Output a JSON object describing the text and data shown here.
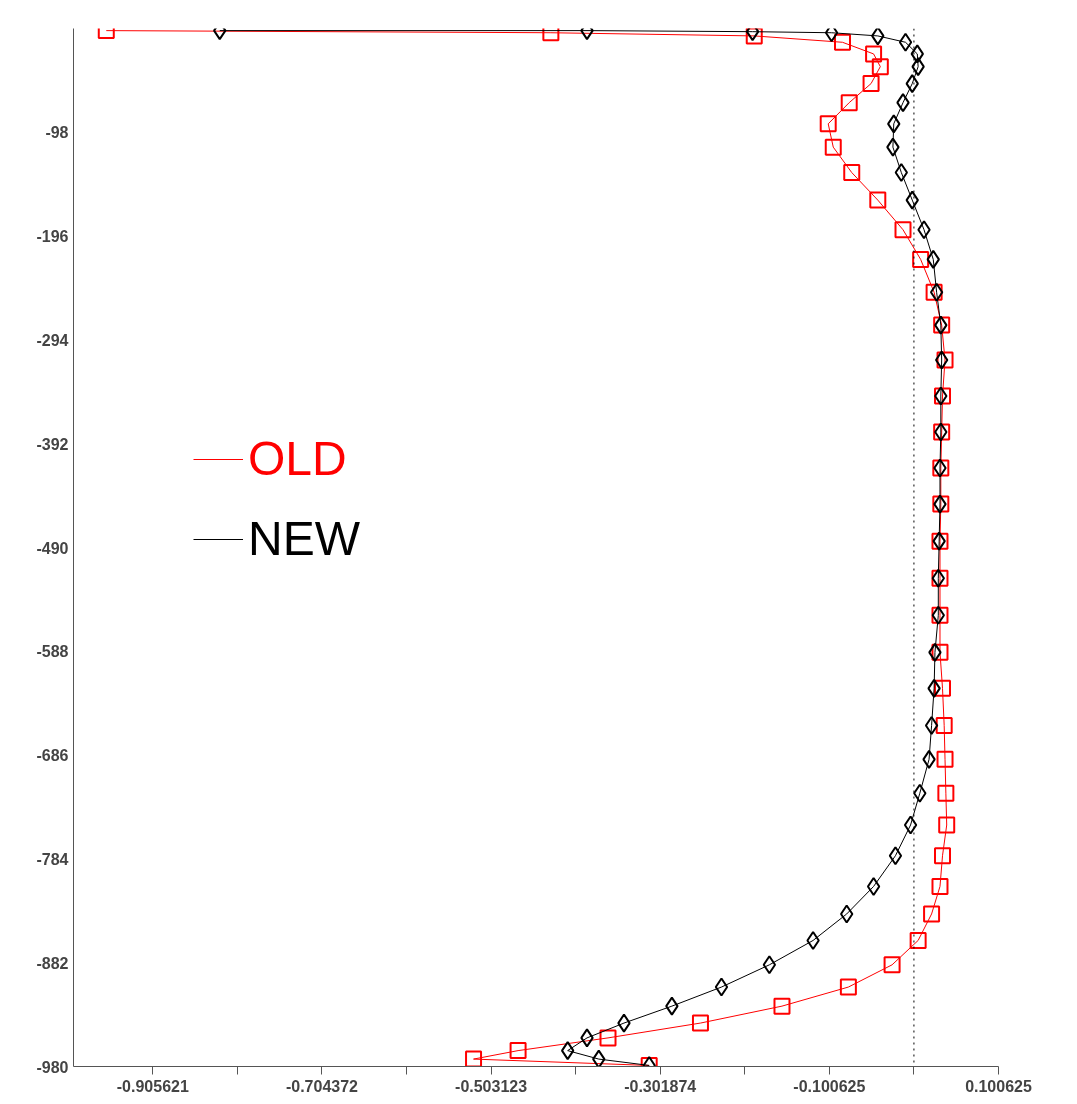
{
  "chart_data": {
    "type": "line",
    "xlim": [
      -1.0,
      0.100625
    ],
    "ylim": [
      -980,
      0
    ],
    "xticks": [
      {
        "value": -0.905621,
        "label": "-0.905621"
      },
      {
        "value": -0.804997,
        "label": null
      },
      {
        "value": -0.704372,
        "label": "-0.704372"
      },
      {
        "value": -0.603748,
        "label": null
      },
      {
        "value": -0.503123,
        "label": "-0.503123"
      },
      {
        "value": -0.402499,
        "label": null
      },
      {
        "value": -0.301874,
        "label": "-0.301874"
      },
      {
        "value": -0.20125,
        "label": null
      },
      {
        "value": -0.100625,
        "label": "-0.100625"
      },
      {
        "value": 0,
        "label": null
      },
      {
        "value": 0.100625,
        "label": "0.100625"
      }
    ],
    "yticks": [
      {
        "value": -980,
        "label": "-980"
      },
      {
        "value": -882,
        "label": "-882"
      },
      {
        "value": -784,
        "label": "-784"
      },
      {
        "value": -686,
        "label": "-686"
      },
      {
        "value": -588,
        "label": "-588"
      },
      {
        "value": -490,
        "label": "-490"
      },
      {
        "value": -392,
        "label": "-392"
      },
      {
        "value": -294,
        "label": "-294"
      },
      {
        "value": -196,
        "label": "-196"
      },
      {
        "value": -98,
        "label": "-98"
      }
    ],
    "grid": false,
    "legend": "left",
    "line_style": "solid",
    "ref_lines": [
      {
        "axis": "x",
        "value": 0,
        "line_style": "dotted",
        "color": "#000000"
      }
    ],
    "series": [
      {
        "name": "OLD",
        "color": "#ff0000",
        "marker": "square",
        "x": [
          -0.961,
          -0.432,
          -0.19,
          -0.085,
          -0.048,
          -0.04,
          -0.051,
          -0.077,
          -0.102,
          -0.096,
          -0.074,
          -0.043,
          -0.013,
          0.008,
          0.024,
          0.033,
          0.037,
          0.034,
          0.033,
          0.032,
          0.032,
          0.031,
          0.031,
          0.031,
          0.031,
          0.034,
          0.036,
          0.037,
          0.038,
          0.039,
          0.034,
          0.031,
          0.021,
          0.005,
          -0.026,
          -0.078,
          -0.157,
          -0.254,
          -0.364,
          -0.471,
          -0.524,
          -0.315
        ],
        "values": [
          -2,
          -4,
          -7,
          -13,
          -24,
          -36,
          -52,
          -70,
          -90,
          -112,
          -136,
          -162,
          -190,
          -218,
          -249,
          -280,
          -313,
          -347,
          -381,
          -415,
          -449,
          -484,
          -519,
          -554,
          -589,
          -623,
          -658,
          -690,
          -722,
          -752,
          -781,
          -810,
          -836,
          -861,
          -884,
          -905,
          -923,
          -939,
          -953,
          -965,
          -973,
          -979
        ]
      },
      {
        "name": "NEW",
        "color": "#000000",
        "marker": "diamond",
        "x": [
          -0.826,
          -0.389,
          -0.192,
          -0.098,
          -0.043,
          -0.01,
          0.004,
          0.005,
          -0.002,
          -0.013,
          -0.024,
          -0.025,
          -0.015,
          -0.002,
          0.012,
          0.023,
          0.027,
          0.032,
          0.033,
          0.032,
          0.032,
          0.031,
          0.031,
          0.03,
          0.029,
          0.029,
          0.025,
          0.024,
          0.021,
          0.018,
          0.007,
          -0.004,
          -0.022,
          -0.048,
          -0.08,
          -0.12,
          -0.172,
          -0.229,
          -0.288,
          -0.345,
          -0.389,
          -0.412,
          -0.375,
          -0.315
        ],
        "values": [
          -2,
          -2,
          -3,
          -4,
          -7,
          -13,
          -24,
          -36,
          -52,
          -70,
          -90,
          -112,
          -136,
          -162,
          -190,
          -218,
          -249,
          -280,
          -313,
          -347,
          -381,
          -415,
          -449,
          -484,
          -519,
          -554,
          -589,
          -623,
          -658,
          -690,
          -722,
          -752,
          -781,
          -810,
          -836,
          -861,
          -884,
          -905,
          -923,
          -939,
          -953,
          -965,
          -973,
          -979
        ]
      }
    ]
  }
}
